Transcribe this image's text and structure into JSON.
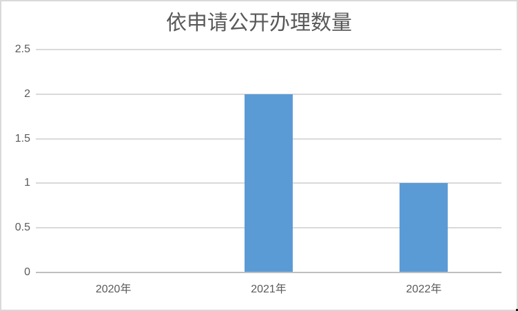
{
  "chart_data": {
    "type": "bar",
    "title": "依申请公开办理数量",
    "categories": [
      "2020年",
      "2021年",
      "2022年"
    ],
    "values": [
      0,
      2,
      1
    ],
    "xlabel": "",
    "ylabel": "",
    "ylim": [
      0,
      2.5
    ],
    "yticks": [
      0,
      0.5,
      1,
      1.5,
      2,
      2.5
    ],
    "grid": "horizontal",
    "legend": "none",
    "bar_color": "#5B9BD5",
    "gridline_color": "#D9D9D9",
    "axis_line_color": "#BFBFBF",
    "label_color": "#595959",
    "title_color": "#595959",
    "border_color": "#D9D9D9",
    "background": "#FFFFFF"
  }
}
